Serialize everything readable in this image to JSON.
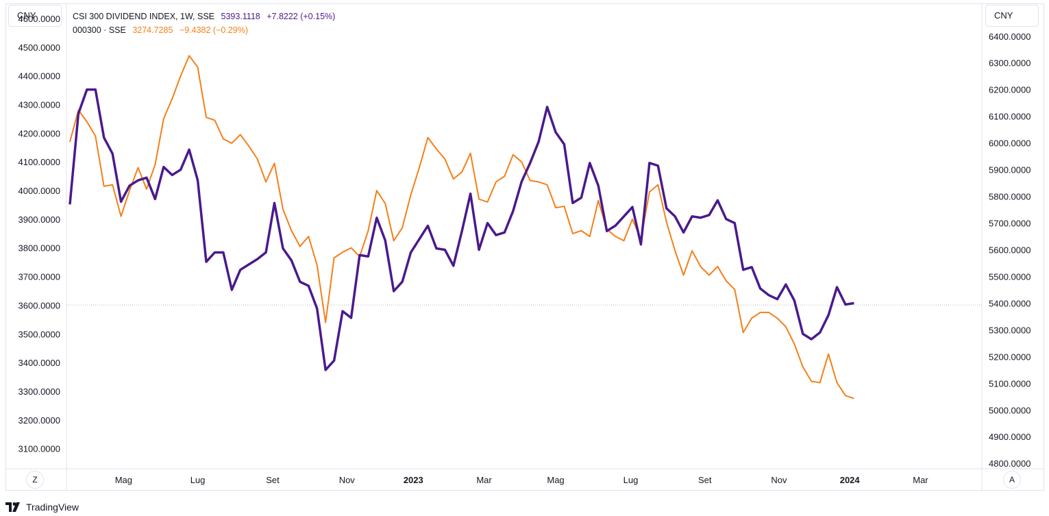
{
  "currency_left": "CNY",
  "currency_right": "CNY",
  "buttons": {
    "z_label": "Z",
    "a_label": "A"
  },
  "legend": {
    "series1": {
      "name": "CSI 300 DIVIDEND INDEX, 1W, SSE",
      "value": "5393.1118",
      "change": "+7.8222 (+0.15%)"
    },
    "series2": {
      "name": "000300 · SSE",
      "value": "3274.7285",
      "change": "−9.4382 (−0.29%)"
    }
  },
  "footer": {
    "brand": "TradingView"
  },
  "colors": {
    "dividend": "#4a1a8c",
    "csi300": "#f57f17",
    "axis_text": "#131722",
    "grid_border": "#e0e3eb"
  },
  "chart_data": {
    "type": "line",
    "x_tick_labels": [
      {
        "label": "Mag",
        "t": 6.3,
        "bold": false
      },
      {
        "label": "Lug",
        "t": 15.0,
        "bold": false
      },
      {
        "label": "Set",
        "t": 23.8,
        "bold": false
      },
      {
        "label": "Nov",
        "t": 32.5,
        "bold": false
      },
      {
        "label": "2023",
        "t": 40.3,
        "bold": true
      },
      {
        "label": "Mar",
        "t": 48.6,
        "bold": false
      },
      {
        "label": "Mag",
        "t": 57.0,
        "bold": false
      },
      {
        "label": "Lug",
        "t": 65.8,
        "bold": false
      },
      {
        "label": "Set",
        "t": 74.5,
        "bold": false
      },
      {
        "label": "Nov",
        "t": 83.2,
        "bold": false
      },
      {
        "label": "2024",
        "t": 91.5,
        "bold": true
      },
      {
        "label": "Mar",
        "t": 99.8,
        "bold": false
      }
    ],
    "x_range": [
      -0.4,
      107
    ],
    "left_axis": {
      "ylim": [
        3030,
        4650
      ],
      "ticks": [
        "3100.0000",
        "3200.0000",
        "3300.0000",
        "3400.0000",
        "3500.0000",
        "3600.0000",
        "3700.0000",
        "3800.0000",
        "3900.0000",
        "4000.0000",
        "4100.0000",
        "4200.0000",
        "4300.0000",
        "4400.0000",
        "4500.0000",
        "4600.0000"
      ]
    },
    "right_axis": {
      "ylim": [
        4780,
        6520
      ],
      "ticks": [
        "4800.0000",
        "4900.0000",
        "5000.0000",
        "5100.0000",
        "5200.0000",
        "5300.0000",
        "5400.0000",
        "5500.0000",
        "5600.0000",
        "5700.0000",
        "5800.0000",
        "5900.0000",
        "6000.0000",
        "6100.0000",
        "6200.0000",
        "6300.0000",
        "6400.0000"
      ]
    },
    "last_price_line": 5393.1118,
    "series": [
      {
        "name": "000300 · SSE",
        "axis": "left",
        "color": "#f57f17",
        "values": [
          4170,
          4280,
          4240,
          4190,
          4015,
          4020,
          3910,
          4000,
          4080,
          4005,
          4090,
          4250,
          4320,
          4400,
          4470,
          4430,
          4255,
          4245,
          4180,
          4165,
          4195,
          4155,
          4110,
          4030,
          4095,
          3935,
          3860,
          3805,
          3840,
          3740,
          3540,
          3765,
          3785,
          3800,
          3770,
          3860,
          4000,
          3955,
          3825,
          3870,
          3985,
          4080,
          4185,
          4145,
          4110,
          4040,
          4065,
          4130,
          3970,
          3960,
          4030,
          4050,
          4125,
          4100,
          4035,
          4030,
          4020,
          3940,
          3945,
          3850,
          3860,
          3840,
          3965,
          3865,
          3840,
          3825,
          3900,
          3830,
          3995,
          4020,
          3890,
          3790,
          3705,
          3790,
          3735,
          3705,
          3735,
          3685,
          3655,
          3505,
          3555,
          3575,
          3575,
          3555,
          3525,
          3465,
          3385,
          3335,
          3330,
          3430,
          3330,
          3285,
          3275
        ]
      },
      {
        "name": "CSI 300 DIVIDEND INDEX, 1W, SSE",
        "axis": "right",
        "color": "#4a1a8c",
        "values": [
          5770,
          6110,
          6200,
          6200,
          6020,
          5960,
          5780,
          5840,
          5860,
          5870,
          5790,
          5910,
          5880,
          5900,
          5975,
          5860,
          5555,
          5590,
          5590,
          5450,
          5525,
          5545,
          5565,
          5590,
          5775,
          5605,
          5560,
          5480,
          5465,
          5380,
          5150,
          5185,
          5370,
          5345,
          5580,
          5575,
          5720,
          5635,
          5445,
          5480,
          5590,
          5640,
          5690,
          5605,
          5600,
          5540,
          5670,
          5810,
          5600,
          5700,
          5655,
          5665,
          5745,
          5855,
          5925,
          6005,
          6135,
          6040,
          5995,
          5775,
          5795,
          5925,
          5840,
          5670,
          5690,
          5725,
          5760,
          5620,
          5925,
          5915,
          5755,
          5725,
          5665,
          5725,
          5720,
          5730,
          5785,
          5715,
          5700,
          5525,
          5535,
          5455,
          5430,
          5415,
          5470,
          5410,
          5285,
          5265,
          5290,
          5355,
          5460,
          5395,
          5400
        ]
      }
    ]
  }
}
